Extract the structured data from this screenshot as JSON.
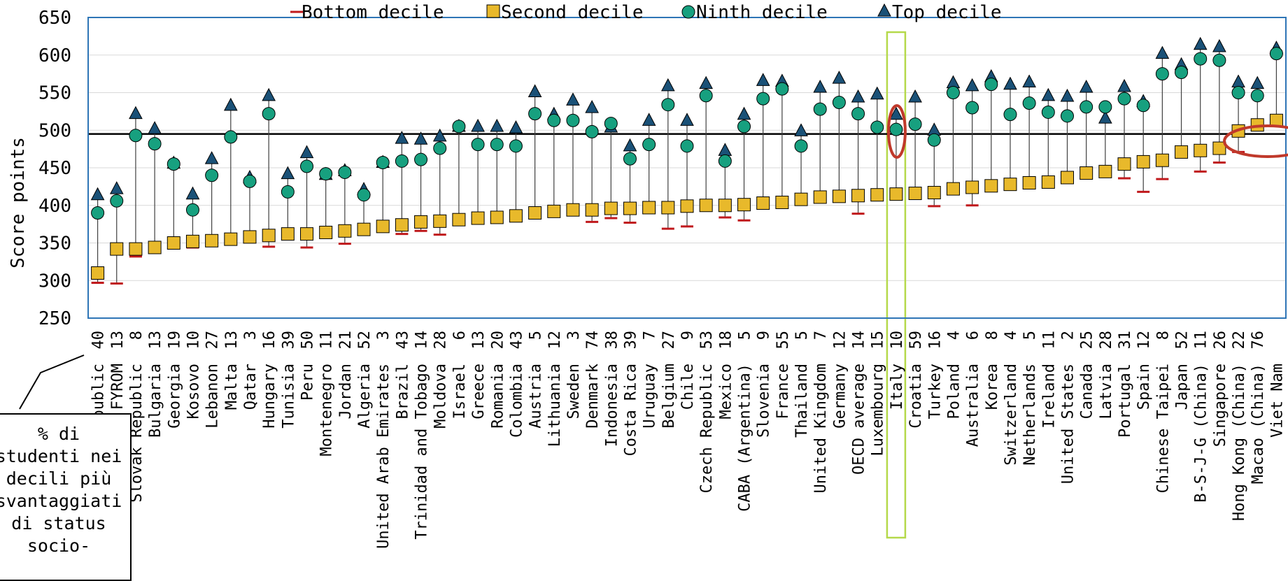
{
  "chart_data": {
    "type": "scatter",
    "ylabel": "Score points",
    "ylim": [
      250,
      650
    ],
    "yticks": [
      250,
      300,
      350,
      400,
      450,
      500,
      550,
      600,
      650
    ],
    "reference_line": 495,
    "legend": [
      "Bottom decile",
      "Second decile",
      "Ninth decile",
      "Top decile"
    ],
    "legend_position": "top",
    "categories": [
      "Dominican Republic",
      "FYROM",
      "Slovak Republic",
      "Bulgaria",
      "Georgia",
      "Kosovo",
      "Lebanon",
      "Malta",
      "Qatar",
      "Hungary",
      "Tunisia",
      "Peru",
      "Montenegro",
      "Jordan",
      "Algeria",
      "United Arab Emirates",
      "Brazil",
      "Trinidad and Tobago",
      "Moldova",
      "Israel",
      "Greece",
      "Romania",
      "Colombia",
      "Austria",
      "Lithuania",
      "Sweden",
      "Denmark",
      "Indonesia",
      "Costa Rica",
      "Uruguay",
      "Belgium",
      "Chile",
      "Czech Republic",
      "Mexico",
      "CABA (Argentina)",
      "Slovenia",
      "France",
      "Thailand",
      "United Kingdom",
      "Germany",
      "OECD average",
      "Luxembourg",
      "Italy",
      "Croatia",
      "Turkey",
      "Poland",
      "Australia",
      "Korea",
      "Switzerland",
      "Netherlands",
      "Ireland",
      "United States",
      "Canada",
      "Latvia",
      "Portugal",
      "Spain",
      "Chinese Taipei",
      "Japan",
      "B-S-J-G (China)",
      "Singapore",
      "Hong Kong (China)",
      "Macao (China)",
      "Viet Nam"
    ],
    "pct_labels": [
      "40",
      "13",
      "8",
      "13",
      "19",
      "10",
      "27",
      "13",
      "3",
      "16",
      "39",
      "50",
      "11",
      "21",
      "52",
      "3",
      "43",
      "14",
      "28",
      "6",
      "13",
      "20",
      "43",
      "5",
      "12",
      "3",
      "74",
      "38",
      "39",
      "7",
      "27",
      "9",
      "53",
      "18",
      "5",
      "9",
      "55",
      "5",
      "7",
      "12",
      "14",
      "15",
      "10",
      "59",
      "16",
      "4",
      "6",
      "8",
      "4",
      "5",
      "11",
      "2",
      "25",
      "28",
      "31",
      "12",
      "8",
      "52",
      "11",
      "26",
      "22",
      "76",
      ""
    ],
    "series": [
      {
        "name": "Bottom decile",
        "values": [
          297,
          296,
          332,
          null,
          null,
          344,
          null,
          null,
          null,
          345,
          null,
          344,
          null,
          349,
          null,
          null,
          362,
          366,
          361,
          null,
          null,
          null,
          null,
          null,
          null,
          null,
          378,
          383,
          377,
          null,
          369,
          372,
          null,
          384,
          380,
          null,
          null,
          null,
          null,
          null,
          389,
          null,
          null,
          null,
          399,
          null,
          400,
          null,
          null,
          null,
          null,
          null,
          null,
          null,
          436,
          418,
          435,
          null,
          445,
          457,
          471,
          null,
          null
        ]
      },
      {
        "name": "Second decile",
        "values": [
          310,
          342,
          342,
          344,
          350,
          352,
          353,
          355,
          358,
          360,
          362,
          362,
          364,
          366,
          368,
          372,
          374,
          378,
          379,
          381,
          383,
          384,
          386,
          390,
          392,
          394,
          394,
          396,
          396,
          397,
          397,
          399,
          400,
          400,
          401,
          403,
          404,
          408,
          411,
          412,
          413,
          414,
          415,
          416,
          417,
          422,
          424,
          426,
          428,
          430,
          431,
          437,
          443,
          445,
          455,
          458,
          460,
          471,
          473,
          476,
          499,
          507,
          513
        ]
      },
      {
        "name": "Ninth decile",
        "values": [
          390,
          406,
          493,
          482,
          455,
          394,
          440,
          491,
          432,
          522,
          418,
          452,
          442,
          444,
          414,
          457,
          459,
          461,
          476,
          505,
          481,
          481,
          479,
          522,
          513,
          513,
          498,
          509,
          462,
          481,
          534,
          479,
          546,
          459,
          505,
          542,
          555,
          479,
          528,
          537,
          522,
          504,
          501,
          508,
          487,
          550,
          530,
          561,
          521,
          536,
          524,
          519,
          531,
          531,
          542,
          533,
          575,
          577,
          595,
          593,
          550,
          546,
          602
        ]
      },
      {
        "name": "Top decile",
        "values": [
          413,
          421,
          521,
          501,
          455,
          414,
          461,
          532,
          436,
          545,
          441,
          469,
          440,
          445,
          420,
          456,
          488,
          487,
          491,
          504,
          504,
          504,
          502,
          550,
          520,
          539,
          529,
          503,
          478,
          512,
          558,
          512,
          561,
          472,
          520,
          565,
          564,
          498,
          556,
          568,
          543,
          547,
          520,
          543,
          499,
          562,
          558,
          570,
          560,
          563,
          545,
          544,
          556,
          515,
          557,
          537,
          601,
          586,
          613,
          610,
          563,
          561,
          608
        ]
      }
    ],
    "highlight_category": "Italy",
    "callout_text": "% di\nstudenti nei\ndecili più\nsvantaggiati\ndi status\nsocio-"
  },
  "colors": {
    "bottom": "#c0191c",
    "second": "#e8b92b",
    "ninth": "#17a07f",
    "top": "#1a5177",
    "frame": "#2e75b6",
    "highlight": "#b5d94a",
    "circle": "#c0392b"
  }
}
